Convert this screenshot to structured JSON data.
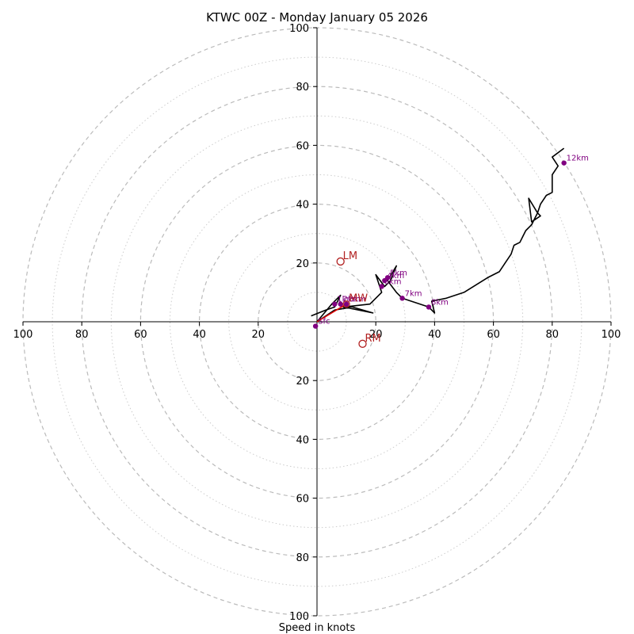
{
  "chart_data": {
    "type": "hodograph",
    "title": "KTWC 00Z - Monday January 05 2026",
    "xlabel": "Speed in knots",
    "range": [
      -100,
      100
    ],
    "ring_step": 20,
    "tick_labels": [
      "100",
      "80",
      "60",
      "40",
      "20",
      "20",
      "40",
      "60",
      "80",
      "100"
    ],
    "y_tick_labels_up": [
      "20",
      "40",
      "60",
      "80",
      "100"
    ],
    "y_tick_labels_down": [
      "20",
      "40",
      "60",
      "80",
      "100"
    ],
    "colors": {
      "trace": "#000000",
      "mean_wind_vector": "#e00000",
      "height_points": "#800080",
      "storm_motion": "#b22222",
      "rings": "#bbbbbb"
    },
    "trace": [
      [
        -2,
        2
      ],
      [
        3,
        4
      ],
      [
        6,
        5
      ],
      [
        8,
        9
      ],
      [
        5,
        6
      ],
      [
        0,
        0
      ],
      [
        6,
        4
      ],
      [
        12,
        5
      ],
      [
        19,
        3
      ],
      [
        9,
        5
      ],
      [
        18,
        6
      ],
      [
        22,
        10
      ],
      [
        20,
        16
      ],
      [
        23,
        12
      ],
      [
        25,
        14
      ],
      [
        27,
        19
      ],
      [
        24,
        14
      ],
      [
        27,
        10
      ],
      [
        29,
        8
      ],
      [
        38,
        5
      ],
      [
        40,
        3
      ],
      [
        39,
        7
      ],
      [
        44,
        8
      ],
      [
        50,
        10
      ],
      [
        58,
        15
      ],
      [
        62,
        17
      ],
      [
        64,
        20
      ],
      [
        66,
        23
      ],
      [
        67,
        26
      ],
      [
        69,
        27
      ],
      [
        70,
        29
      ],
      [
        71,
        31
      ],
      [
        73,
        33
      ],
      [
        74,
        35
      ],
      [
        75,
        37
      ],
      [
        76,
        36
      ],
      [
        73,
        34
      ],
      [
        72,
        42
      ],
      [
        75,
        37
      ],
      [
        76,
        40
      ],
      [
        78,
        43
      ],
      [
        80,
        44
      ],
      [
        80,
        50
      ],
      [
        82,
        53
      ],
      [
        80,
        56
      ],
      [
        84,
        59
      ]
    ],
    "height_points": [
      {
        "label": "Sfc",
        "u": -0.5,
        "v": -1.5
      },
      {
        "label": "1km",
        "u": 6,
        "v": 6
      },
      {
        "label": "2km",
        "u": 8,
        "v": 6
      },
      {
        "label": "3km",
        "u": 10,
        "v": 6
      },
      {
        "label": "4km",
        "u": 23,
        "v": 14
      },
      {
        "label": "5km",
        "u": 24,
        "v": 15
      },
      {
        "label": "6km",
        "u": 22,
        "v": 12
      },
      {
        "label": "7km",
        "u": 29,
        "v": 8
      },
      {
        "label": "8km",
        "u": 38,
        "v": 5
      },
      {
        "label": "12km",
        "u": 84,
        "v": 54
      }
    ],
    "mean_wind": {
      "label": "MW",
      "u": 10,
      "v": 6
    },
    "storm_motions": [
      {
        "label": "LM",
        "u": 8,
        "v": 20.5
      },
      {
        "label": "RM",
        "u": 15.5,
        "v": -7.5
      }
    ]
  }
}
